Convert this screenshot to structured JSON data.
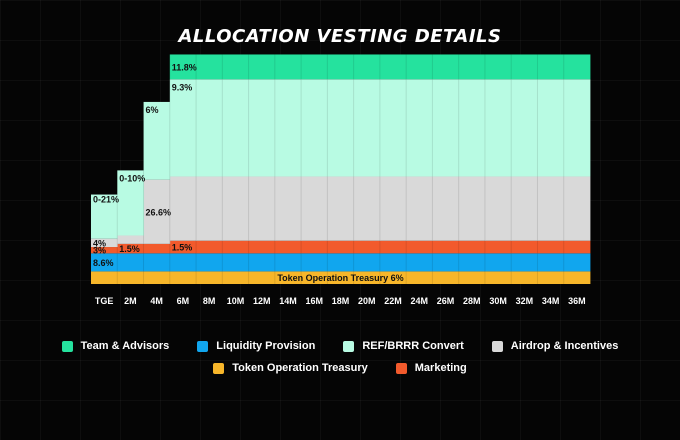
{
  "chart_data": {
    "type": "area",
    "title": "ALLOCATION VESTING DETAILS",
    "x": [
      "TGE",
      "2M",
      "4M",
      "6M",
      "8M",
      "10M",
      "12M",
      "14M",
      "16M",
      "18M",
      "20M",
      "22M",
      "24M",
      "26M",
      "28M",
      "30M",
      "32M",
      "34M",
      "36M"
    ],
    "series": [
      {
        "name": "Token Operation Treasury",
        "color": "#F7B62A",
        "values": [
          6,
          6,
          6,
          6,
          6,
          6,
          6,
          6,
          6,
          6,
          6,
          6,
          6,
          6,
          6,
          6,
          6,
          6,
          6
        ]
      },
      {
        "name": "Liquidity Provision",
        "color": "#11A6EE",
        "values": [
          8.6,
          8.6,
          8.6,
          8.6,
          8.6,
          8.6,
          8.6,
          8.6,
          8.6,
          8.6,
          8.6,
          8.6,
          8.6,
          8.6,
          8.6,
          8.6,
          8.6,
          8.6,
          8.6
        ]
      },
      {
        "name": "Marketing",
        "color": "#F25A2C",
        "values": [
          3,
          4.5,
          4.5,
          6,
          6,
          6,
          6,
          6,
          6,
          6,
          6,
          6,
          6,
          6,
          6,
          6,
          6,
          6,
          6
        ]
      },
      {
        "name": "Airdrop & Incentives",
        "color": "#D9D9D9",
        "values": [
          4,
          4,
          30.6,
          30.6,
          30.6,
          30.6,
          30.6,
          30.6,
          30.6,
          30.6,
          30.6,
          30.6,
          30.6,
          30.6,
          30.6,
          30.6,
          30.6,
          30.6,
          30.6
        ]
      },
      {
        "name": "REF/BRRR Convert",
        "color": "#B8FBE3",
        "values": [
          21,
          31,
          37,
          46.3,
          46.3,
          46.3,
          46.3,
          46.3,
          46.3,
          46.3,
          46.3,
          46.3,
          46.3,
          46.3,
          46.3,
          46.3,
          46.3,
          46.3,
          46.3
        ]
      },
      {
        "name": "Team & Advisors",
        "color": "#25E29E",
        "values": [
          0,
          0,
          0,
          11.8,
          11.8,
          11.8,
          11.8,
          11.8,
          11.8,
          11.8,
          11.8,
          11.8,
          11.8,
          11.8,
          11.8,
          11.8,
          11.8,
          11.8,
          11.8
        ]
      }
    ],
    "labels": [
      {
        "text": "Token Operation Treasury 6%",
        "series": "Token Operation Treasury",
        "col": 9,
        "center": true
      },
      {
        "text": "8.6%",
        "series": "Liquidity Provision",
        "col": 0
      },
      {
        "text": "3%",
        "series": "Marketing",
        "col": 0
      },
      {
        "text": "1.5%",
        "series": "Marketing",
        "col": 1
      },
      {
        "text": "1.5%",
        "series": "Marketing",
        "col": 3
      },
      {
        "text": "4%",
        "series": "Airdrop & Incentives",
        "col": 0
      },
      {
        "text": "26.6%",
        "series": "Airdrop & Incentives",
        "col": 2
      },
      {
        "text": "0-21%",
        "series": "REF/BRRR Convert",
        "col": 0,
        "anchor": "top"
      },
      {
        "text": "0-10%",
        "series": "REF/BRRR Convert",
        "col": 1,
        "anchor": "step"
      },
      {
        "text": "6%",
        "series": "REF/BRRR Convert",
        "col": 2,
        "anchor": "step"
      },
      {
        "text": "9.3%",
        "series": "REF/BRRR Convert",
        "col": 3,
        "anchor": "step"
      },
      {
        "text": "11.8%",
        "series": "Team & Advisors",
        "col": 3
      }
    ],
    "ylim": [
      0,
      100
    ],
    "legend_position": "bottom",
    "grid": true
  },
  "legend": {
    "row1": [
      {
        "label": "Team & Advisors",
        "color": "#25E29E"
      },
      {
        "label": "Liquidity Provision",
        "color": "#11A6EE"
      },
      {
        "label": "REF/BRRR Convert",
        "color": "#B8FBE3"
      },
      {
        "label": "Airdrop & Incentives",
        "color": "#D9D9D9"
      }
    ],
    "row2": [
      {
        "label": "Token Operation Treasury",
        "color": "#F7B62A"
      },
      {
        "label": "Marketing",
        "color": "#F25A2C"
      }
    ]
  }
}
